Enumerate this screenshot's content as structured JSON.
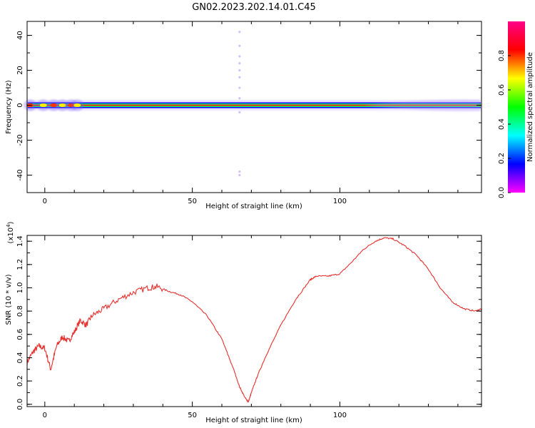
{
  "title": "GN02.2023.202.14.01.C45",
  "chart_data": [
    {
      "type": "heatmap",
      "xlabel": "Height of straight line (km)",
      "ylabel": "Frequency (Hz)",
      "xlim": [
        -6,
        148
      ],
      "ylim": [
        -50,
        48
      ],
      "xticks": [
        0,
        50,
        100
      ],
      "yticks": [
        -40,
        -20,
        0,
        20,
        40
      ],
      "grid": false,
      "colormap": [
        "#ff00ff",
        "#0000ff",
        "#00ffff",
        "#00ff00",
        "#ffff00",
        "#ff0000",
        "#ff0088"
      ],
      "band_center_hz": 0,
      "colorbar": {
        "label": "Normalized spectral amplitude",
        "range": [
          0.0,
          1.0
        ],
        "ticks": [
          0.0,
          0.2,
          0.4,
          0.6,
          0.8
        ]
      }
    },
    {
      "type": "line",
      "xlabel": "Height of straight line (km)",
      "ylabel": "SNR (10 * v/v)",
      "yscale_label": "(x10",
      "yscale_exp": "4",
      "yscale_close": ")",
      "xlim": [
        -6,
        148
      ],
      "ylim": [
        -0.02,
        1.45
      ],
      "xticks": [
        0,
        50,
        100
      ],
      "yticks": [
        0.0,
        0.2,
        0.4,
        0.6,
        0.8,
        1.0,
        1.2,
        1.4
      ],
      "ytick_labels": [
        "0.0",
        "0.2",
        "0.4",
        "0.6",
        "0.8",
        "1.0",
        "1.2",
        "1.4"
      ],
      "grid": false,
      "color": "#e8302e",
      "x": [
        -6,
        -4,
        -2,
        0,
        2,
        4,
        6,
        8,
        10,
        12,
        14,
        16,
        20,
        25,
        30,
        35,
        38,
        42,
        46,
        50,
        55,
        60,
        64,
        66,
        68,
        69,
        70,
        72,
        75,
        80,
        85,
        90,
        92,
        96,
        100,
        104,
        108,
        112,
        115,
        118,
        122,
        126,
        130,
        134,
        138,
        142,
        146,
        148
      ],
      "values": [
        0.36,
        0.45,
        0.5,
        0.48,
        0.3,
        0.5,
        0.58,
        0.54,
        0.62,
        0.72,
        0.68,
        0.76,
        0.82,
        0.9,
        0.96,
        1.0,
        1.01,
        0.97,
        0.94,
        0.88,
        0.76,
        0.56,
        0.3,
        0.15,
        0.05,
        0.02,
        0.1,
        0.24,
        0.42,
        0.68,
        0.9,
        1.07,
        1.1,
        1.1,
        1.12,
        1.22,
        1.33,
        1.4,
        1.43,
        1.42,
        1.36,
        1.28,
        1.16,
        1.0,
        0.88,
        0.82,
        0.8,
        0.82
      ]
    }
  ]
}
